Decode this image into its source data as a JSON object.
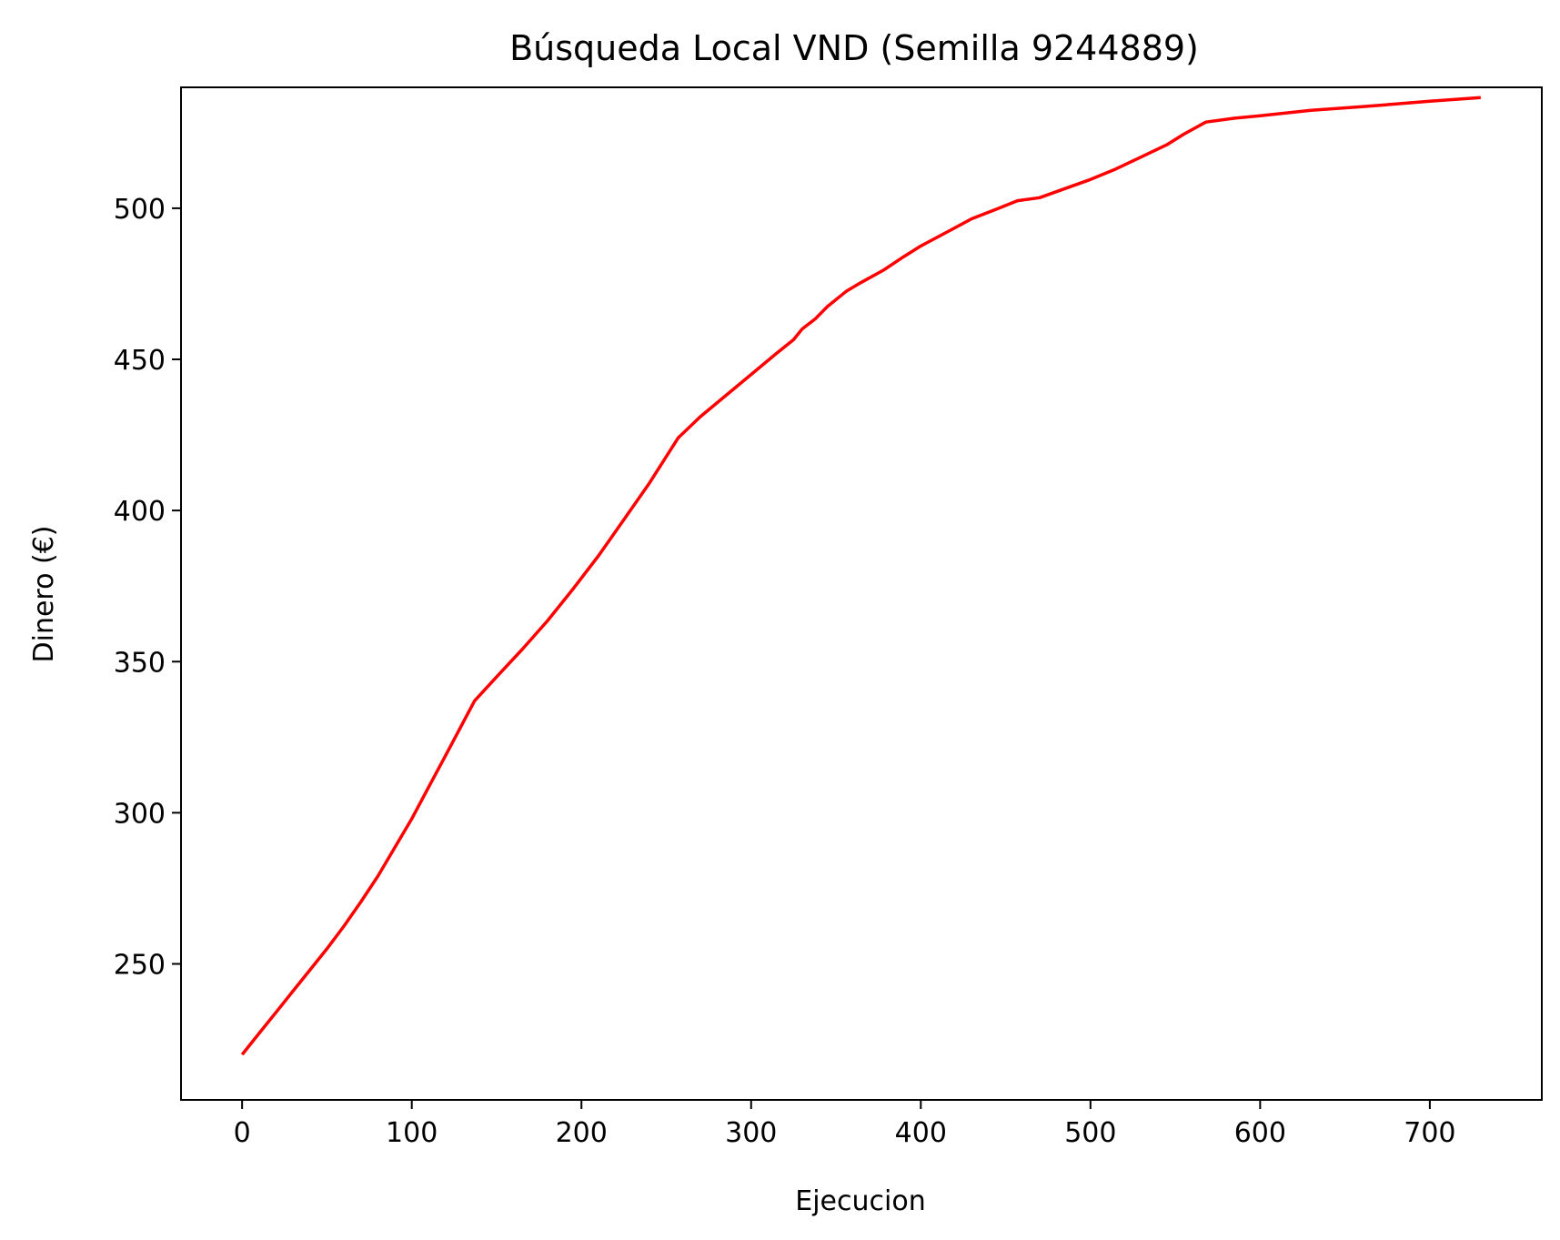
{
  "chart_data": {
    "type": "line",
    "title": "Búsqueda Local VND (Semilla 9244889)",
    "xlabel": "Ejecucion",
    "ylabel": "Dinero (€)",
    "xlim": [
      -36,
      766
    ],
    "ylim": [
      205,
      540
    ],
    "xticks": [
      0,
      100,
      200,
      300,
      400,
      500,
      600,
      700
    ],
    "yticks": [
      250,
      300,
      350,
      400,
      450,
      500
    ],
    "grid": false,
    "legend": "none",
    "series": [
      {
        "color": "#ff0000",
        "x": [
          0,
          10,
          20,
          30,
          40,
          50,
          60,
          70,
          80,
          90,
          100,
          110,
          120,
          137,
          150,
          165,
          180,
          195,
          210,
          225,
          240,
          257,
          270,
          285,
          300,
          315,
          325,
          330,
          338,
          345,
          356,
          365,
          378,
          390,
          400,
          415,
          430,
          445,
          457,
          470,
          485,
          500,
          515,
          530,
          545,
          555,
          568,
          585,
          600,
          630,
          660,
          700,
          730
        ],
        "y": [
          220,
          227,
          234,
          241,
          248,
          255,
          262.5,
          270.5,
          279,
          288.5,
          298,
          308.5,
          319,
          337,
          345,
          354,
          363.5,
          374,
          385,
          397,
          409,
          424,
          431,
          438,
          445,
          452,
          456.5,
          460,
          463.5,
          467.5,
          472.5,
          475.5,
          479.5,
          484,
          487.5,
          492,
          496.5,
          499.8,
          502.5,
          503.5,
          506.5,
          509.5,
          513,
          517,
          521,
          524.5,
          528.5,
          529.8,
          530.6,
          532.4,
          533.6,
          535.4,
          536.6
        ]
      }
    ]
  }
}
